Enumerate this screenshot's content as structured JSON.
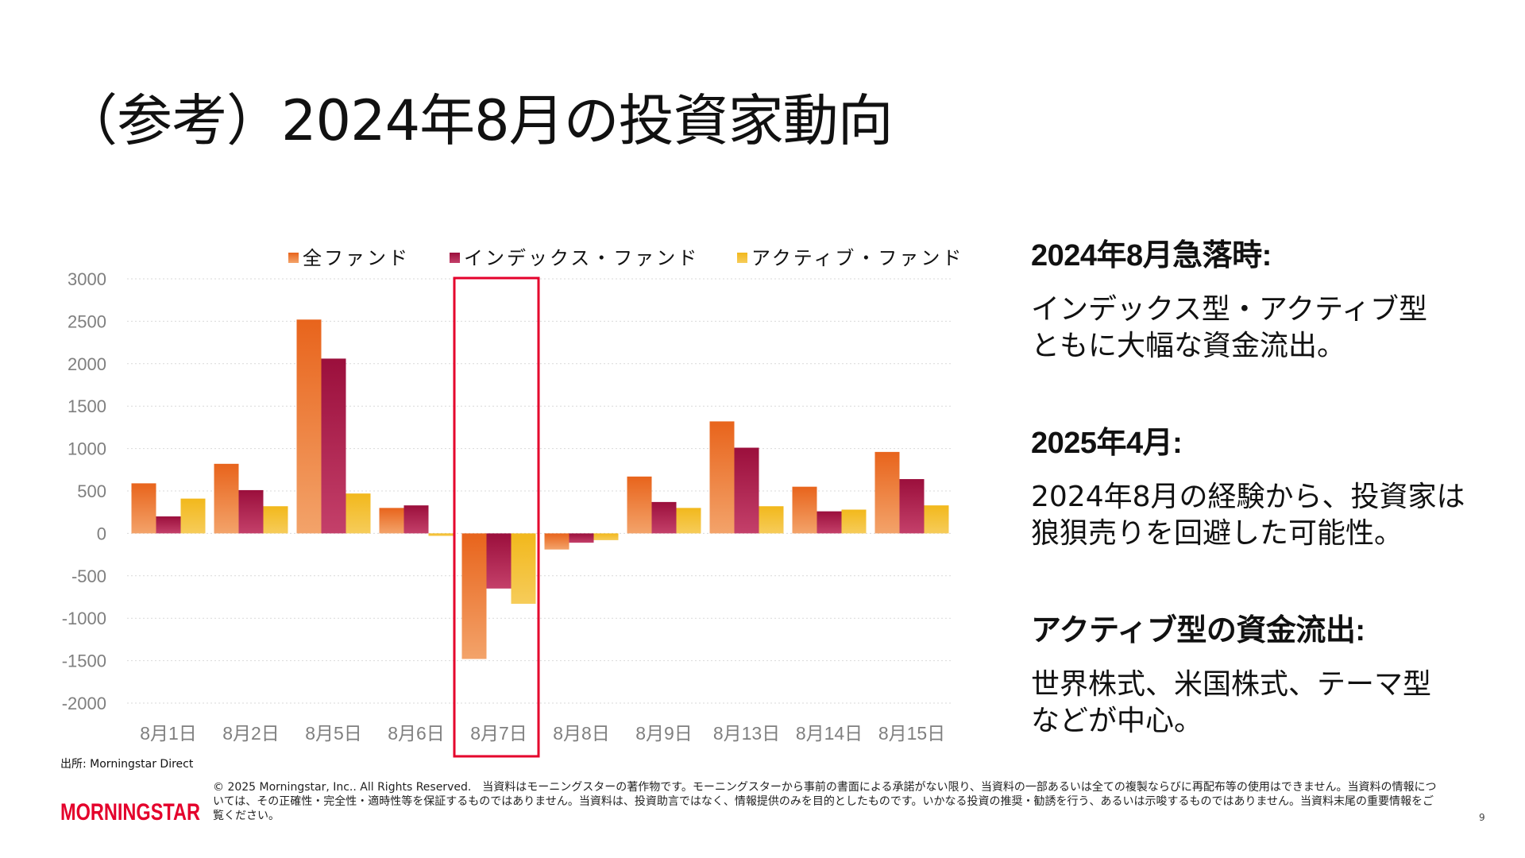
{
  "page": {
    "title": "（参考）2024年8月の投資家動向",
    "source": "出所: Morningstar Direct",
    "logo_text": "MORNINGSTAR",
    "copyright": "© 2025 Morningstar, Inc.. All Rights Reserved.　当資料はモーニングスターの著作物です。モーニングスターから事前の書面による承諾がない限り、当資料の一部あるいは全ての複製ならびに再配布等の使用はできません。当資料の情報については、その正確性・完全性・適時性等を保証するものではありません。当資料は、投資助言ではなく、情報提供のみを目的としたものです。いかなる投資の推奨・勧誘を行う、あるいは示唆するものではありません。当資料末尾の重要情報をご覧ください。",
    "page_number": "9",
    "brand_color": "#e4002b"
  },
  "right_panel": {
    "sections": [
      {
        "heading": "2024年8月急落時:",
        "body": "インデックス型・アクティブ型\nともに大幅な資金流出。"
      },
      {
        "heading": "2025年4月:",
        "body": "2024年8月の経験から、投資家は\n狼狽売りを回避した可能性。"
      },
      {
        "heading": "アクティブ型の資金流出:",
        "body": "世界株式、米国株式、テーマ型\nなどが中心。"
      }
    ]
  },
  "chart_data": {
    "type": "bar",
    "categories": [
      "8月1日",
      "8月2日",
      "8月5日",
      "8月6日",
      "8月7日",
      "8月8日",
      "8月9日",
      "8月13日",
      "8月14日",
      "8月15日"
    ],
    "series": [
      {
        "name": "全ファンド",
        "values": [
          590,
          820,
          2520,
          300,
          -1480,
          -190,
          670,
          1320,
          550,
          960
        ],
        "color_top": "#e8641c",
        "color_bottom": "#f3a36a"
      },
      {
        "name": "インデックス・ファンド",
        "values": [
          200,
          510,
          2060,
          330,
          -650,
          -110,
          370,
          1010,
          260,
          640
        ],
        "color_top": "#9b0f3c",
        "color_bottom": "#c4406a"
      },
      {
        "name": "アクティブ・ファンド",
        "values": [
          410,
          320,
          470,
          -30,
          -830,
          -80,
          300,
          320,
          280,
          330
        ],
        "color_top": "#f2b81c",
        "color_bottom": "#f6cc5a"
      }
    ],
    "ylim": [
      -2000,
      3000
    ],
    "yticks": [
      3000,
      2500,
      2000,
      1500,
      1000,
      500,
      0,
      -500,
      -1000,
      -1500,
      -2000
    ],
    "grid": true,
    "legend_position": "top",
    "highlight_category": "8月7日",
    "highlight_color": "#e4002b",
    "title": "",
    "xlabel": "",
    "ylabel": ""
  }
}
